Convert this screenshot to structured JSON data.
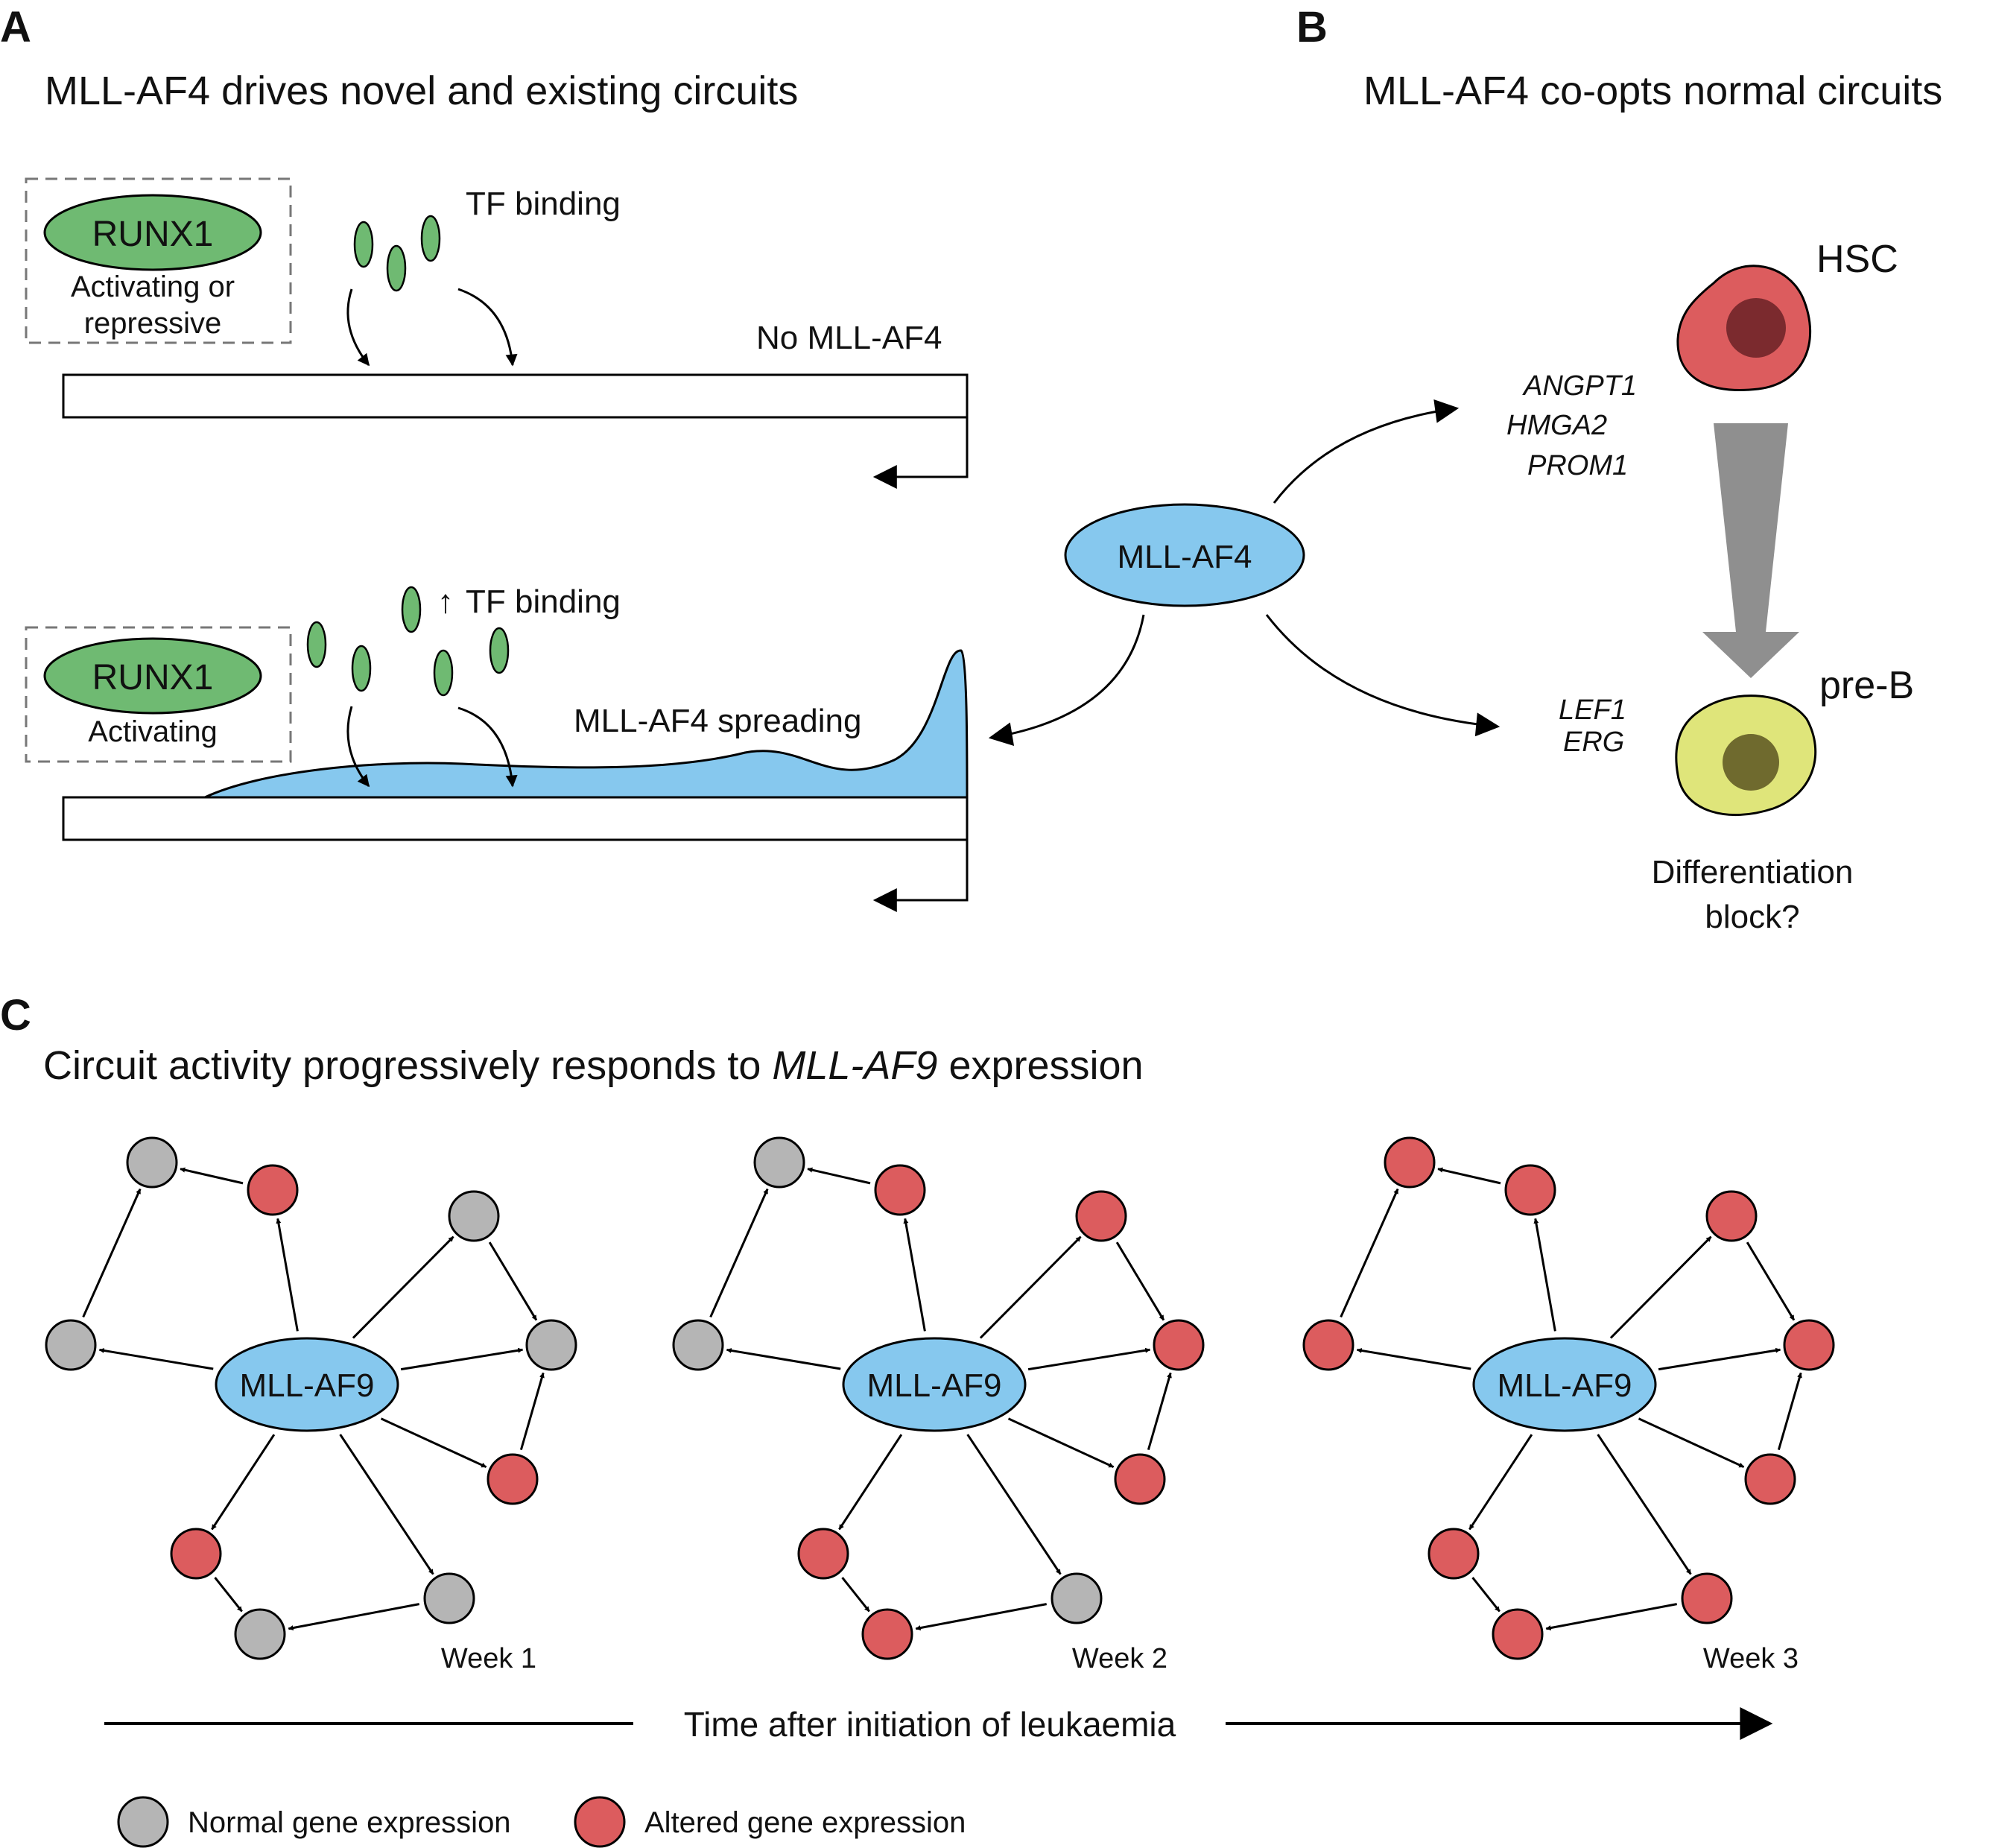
{
  "colors": {
    "mll_fill": "#86c8ee",
    "tf_green": "#6fba72",
    "gray_node": "#b5b5b5",
    "red_node": "#dc5c5e",
    "hsc_fill": "#dc5c5e",
    "hsc_nucleus": "#7b2a2e",
    "preb_fill": "#dfe57a",
    "preb_nucleus": "#6f6a2e",
    "funnel": "#8f8f8f"
  },
  "panelA": {
    "label": "A",
    "title": "MLL-AF4 drives novel and existing circuits",
    "top": {
      "runx1": "RUNX1",
      "runx1_desc1": "Activating or",
      "runx1_desc2": "repressive",
      "tf_binding": "TF binding",
      "no_mll": "No MLL-AF4"
    },
    "bottom": {
      "runx1": "RUNX1",
      "runx1_desc": "Activating",
      "tf_binding_arrow": "↑",
      "tf_binding": "TF binding",
      "spreading": "MLL-AF4 spreading"
    }
  },
  "panelB": {
    "label": "B",
    "title": "MLL-AF4 co-opts normal circuits",
    "center": "MLL-AF4",
    "genes_up": [
      "ANGPT1",
      "HMGA2",
      "PROM1"
    ],
    "genes_down": [
      "LEF1",
      "ERG"
    ],
    "hsc": "HSC",
    "preb": "pre-B",
    "block1": "Differentiation",
    "block2": "block?"
  },
  "panelC": {
    "label": "C",
    "title_pre": "Circuit activity progressively responds to ",
    "title_italic": "MLL-AF9",
    "title_post": " expression",
    "hub": "MLL-AF9",
    "networks": [
      {
        "week": "Week 1",
        "states": [
          "gray",
          "red",
          "gray",
          "gray",
          "gray",
          "red",
          "red",
          "gray",
          "gray"
        ]
      },
      {
        "week": "Week 2",
        "states": [
          "gray",
          "red",
          "red",
          "red",
          "gray",
          "red",
          "red",
          "gray",
          "red"
        ]
      },
      {
        "week": "Week 3",
        "states": [
          "red",
          "red",
          "red",
          "red",
          "red",
          "red",
          "red",
          "red",
          "red"
        ]
      }
    ],
    "timeline": "Time after initiation of leukaemia",
    "legend": [
      {
        "state": "gray",
        "label": "Normal gene expression"
      },
      {
        "state": "red",
        "label": "Altered gene expression"
      }
    ]
  }
}
